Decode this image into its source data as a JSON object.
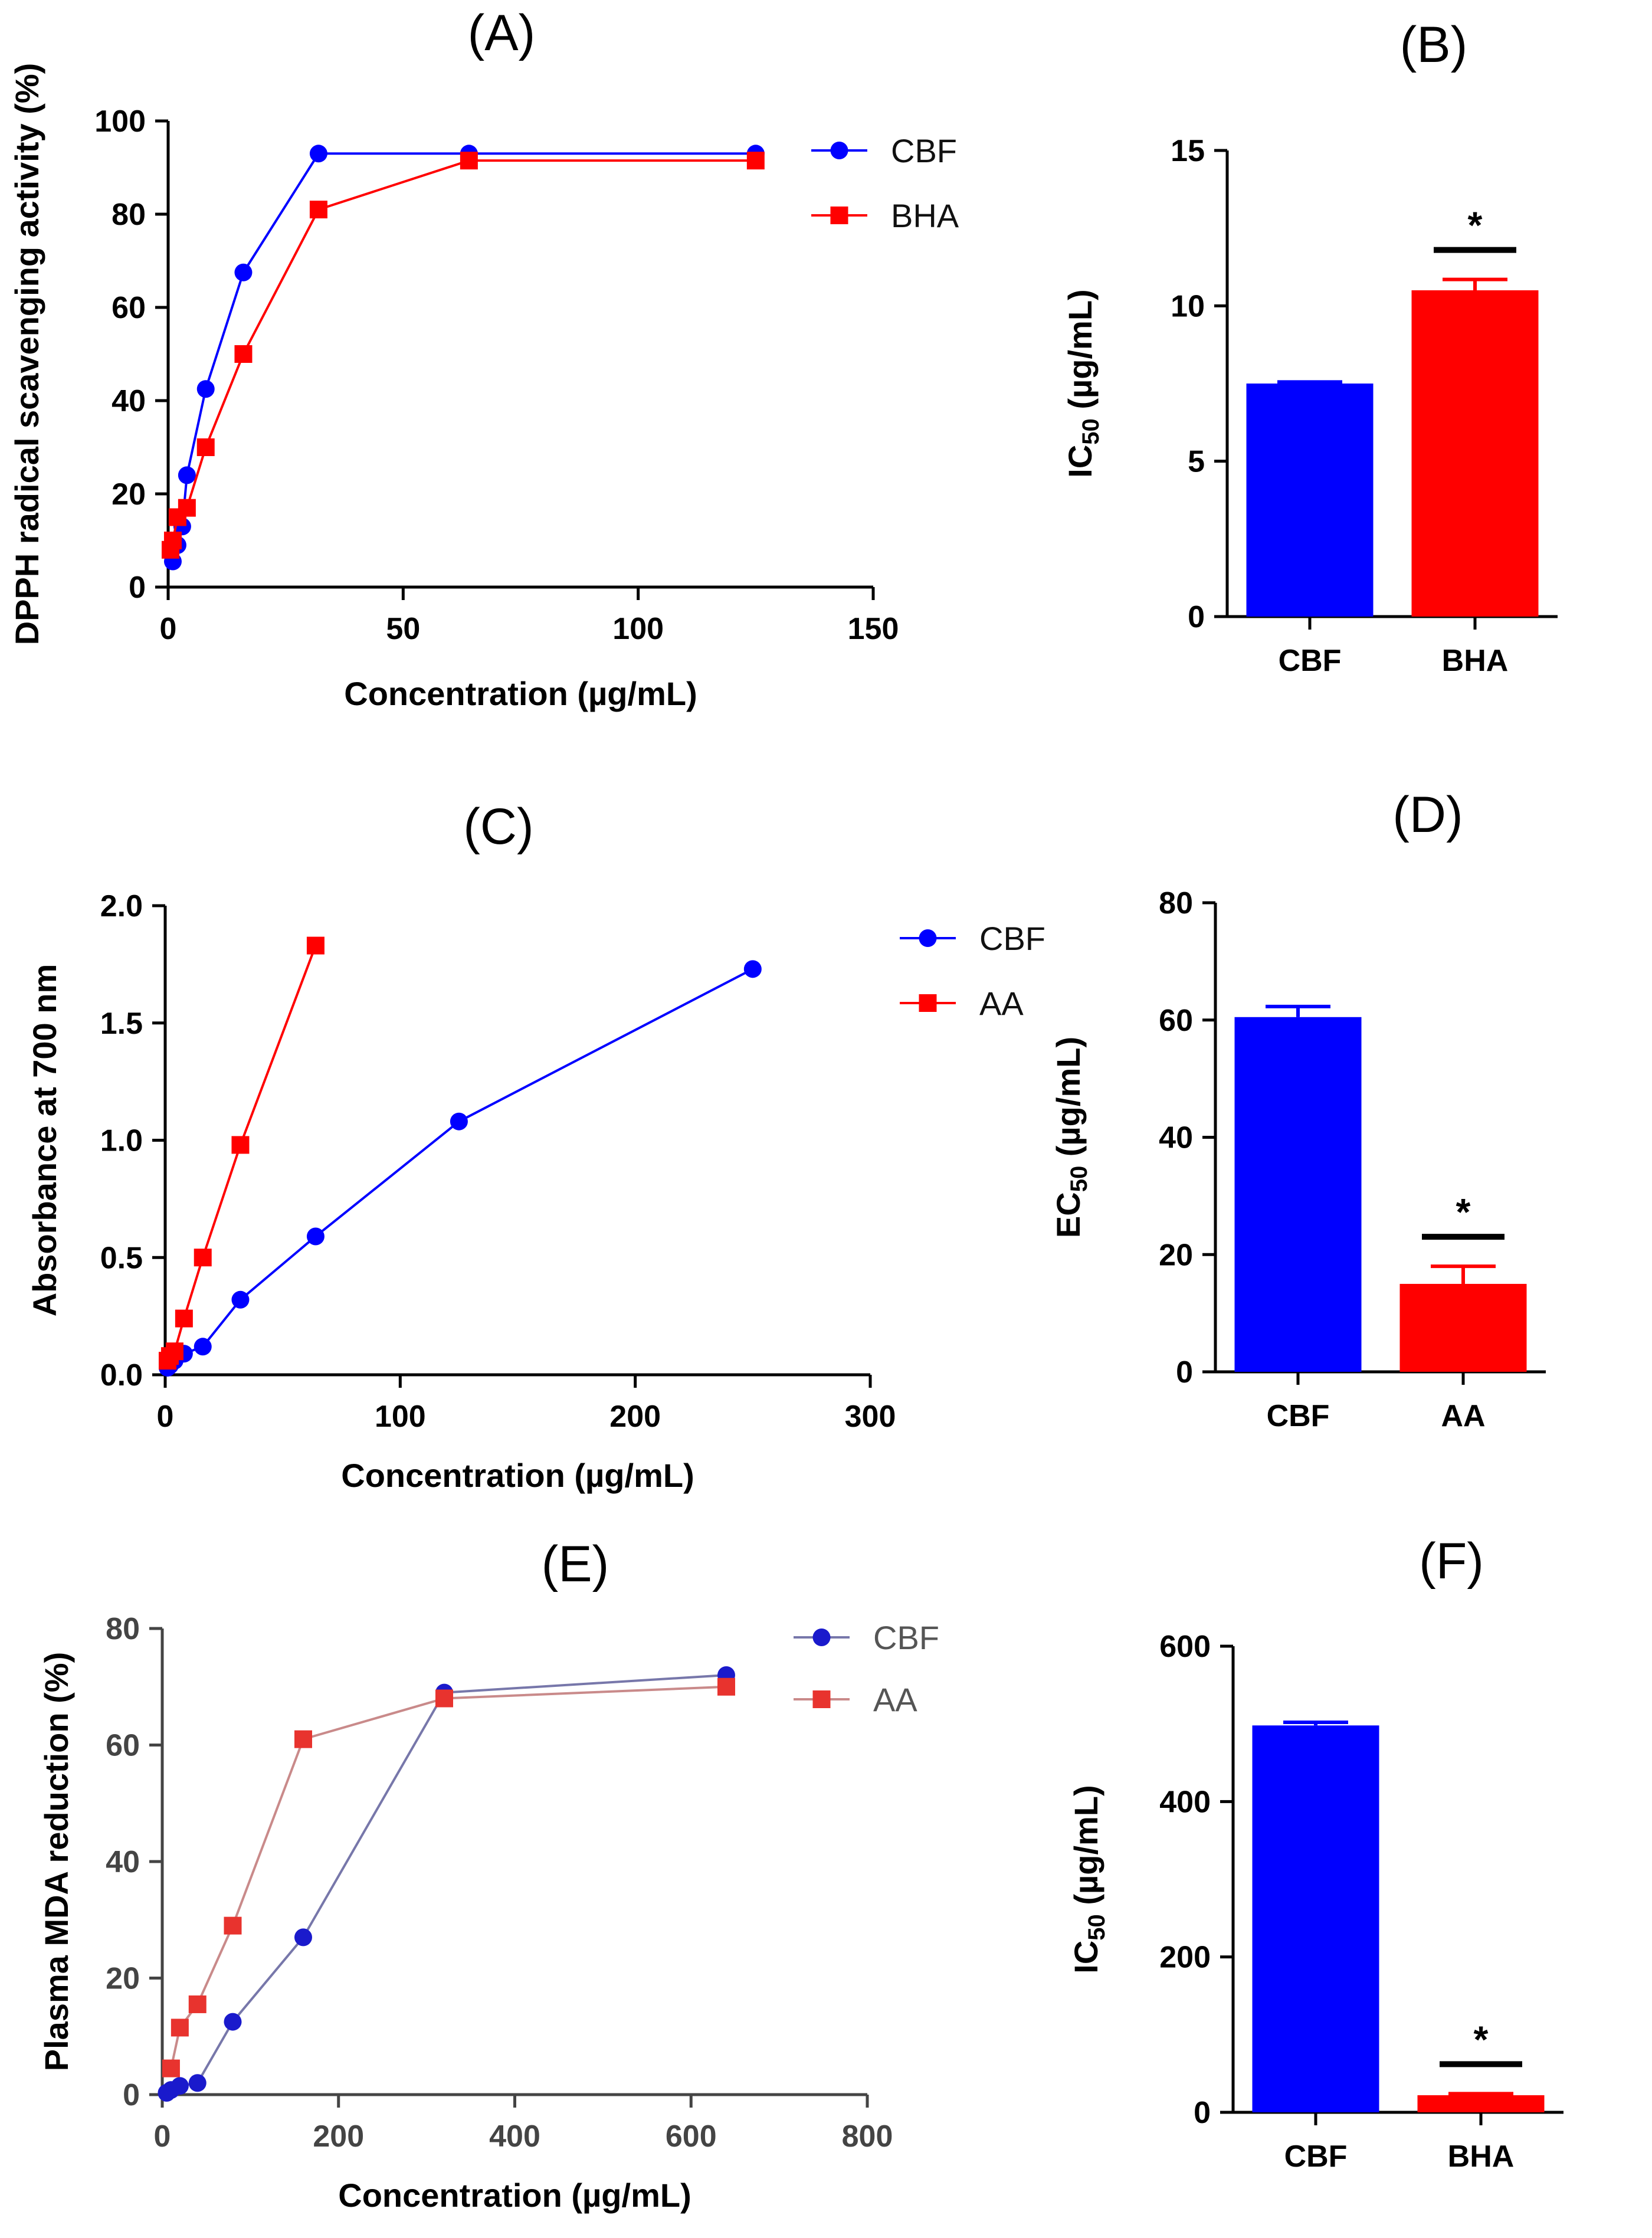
{
  "chart_data": [
    {
      "id": "A",
      "type": "line",
      "title": "(A)",
      "xlabel": "Concentration (µg/mL)",
      "ylabel": "DPPH radical scavenging activity (%)",
      "xlim": [
        0,
        150
      ],
      "ylim": [
        0,
        100
      ],
      "xticks": [
        0,
        50,
        100,
        150
      ],
      "yticks": [
        0,
        20,
        40,
        60,
        80,
        100
      ],
      "legend_position": "top-right-outside",
      "series": [
        {
          "name": "CBF",
          "color": "#0000FF",
          "marker": "circle",
          "x": [
            1,
            2,
            3,
            4,
            8,
            16,
            32,
            64,
            125
          ],
          "y": [
            5.5,
            9,
            13,
            24,
            42.5,
            67.5,
            93,
            93,
            93
          ]
        },
        {
          "name": "BHA",
          "color": "#FF0000",
          "marker": "square",
          "x": [
            0.5,
            1,
            2,
            4,
            8,
            16,
            32,
            64,
            125
          ],
          "y": [
            8,
            10,
            15,
            17,
            30,
            50,
            81,
            91.5,
            91.5
          ]
        }
      ]
    },
    {
      "id": "B",
      "type": "bar",
      "title": "(B)",
      "xlabel": "",
      "ylabel": "IC50 (µg/mL)",
      "ylabel_main": "IC",
      "ylabel_sub": "50",
      "ylabel_unit": "(µg/mL)",
      "ylim": [
        0,
        15
      ],
      "yticks": [
        0,
        5,
        10,
        15
      ],
      "categories": [
        "CBF",
        "BHA"
      ],
      "values": [
        7.5,
        10.5
      ],
      "errors": [
        0.05,
        0.35
      ],
      "colors": [
        "#0000FF",
        "#FF0000"
      ],
      "annotation": "*"
    },
    {
      "id": "C",
      "type": "line",
      "title": "(C)",
      "xlabel": "Concentration (µg/mL)",
      "ylabel": "Absorbance at 700 nm",
      "xlim": [
        0,
        300
      ],
      "ylim": [
        0,
        2.0
      ],
      "xticks": [
        0,
        100,
        200,
        300
      ],
      "yticks": [
        0.0,
        0.5,
        1.0,
        1.5,
        2.0
      ],
      "ytick_labels": [
        "0.0",
        "0.5",
        "1.0",
        "1.5",
        "2.0"
      ],
      "legend_position": "top-right-outside",
      "series": [
        {
          "name": "CBF",
          "color": "#0000FF",
          "marker": "circle",
          "x": [
            1,
            2,
            4,
            8,
            16,
            32,
            64,
            125,
            250
          ],
          "y": [
            0.03,
            0.04,
            0.06,
            0.09,
            0.12,
            0.32,
            0.59,
            1.08,
            1.73
          ]
        },
        {
          "name": "AA",
          "color": "#FF0000",
          "marker": "square",
          "x": [
            1,
            2,
            4,
            8,
            16,
            32,
            64
          ],
          "y": [
            0.06,
            0.08,
            0.1,
            0.24,
            0.5,
            0.98,
            1.83
          ]
        }
      ]
    },
    {
      "id": "D",
      "type": "bar",
      "title": "(D)",
      "xlabel": "",
      "ylabel": "EC50 (µg/mL)",
      "ylabel_main": "EC",
      "ylabel_sub": "50",
      "ylabel_unit": "(µg/mL)",
      "ylim": [
        0,
        80
      ],
      "yticks": [
        0,
        20,
        40,
        60,
        80
      ],
      "categories": [
        "CBF",
        "AA"
      ],
      "values": [
        60.5,
        15
      ],
      "errors": [
        1.8,
        3
      ],
      "colors": [
        "#0000FF",
        "#FF0000"
      ],
      "annotation": "*"
    },
    {
      "id": "E",
      "type": "line",
      "title": "(E)",
      "xlabel": "Concentration (µg/mL)",
      "ylabel": "Plasma MDA reduction (%)",
      "xlim": [
        0,
        800
      ],
      "ylim": [
        0,
        80
      ],
      "xticks": [
        0,
        200,
        400,
        600,
        800
      ],
      "yticks": [
        0,
        20,
        40,
        60,
        80
      ],
      "legend_position": "top-right-outside",
      "series": [
        {
          "name": "CBF",
          "color": "#1A1ACC",
          "line_color": "#7777AA",
          "marker": "circle",
          "x": [
            5,
            10,
            20,
            40,
            80,
            160,
            320,
            640
          ],
          "y": [
            0.3,
            0.8,
            1.5,
            2,
            12.5,
            27,
            69,
            72
          ]
        },
        {
          "name": "AA",
          "color": "#E8332E",
          "line_color": "#C98A8A",
          "marker": "square",
          "x": [
            10,
            20,
            40,
            80,
            160,
            320,
            640
          ],
          "y": [
            4.5,
            11.5,
            15.5,
            29,
            61,
            68,
            70
          ]
        }
      ]
    },
    {
      "id": "F",
      "type": "bar",
      "title": "(F)",
      "xlabel": "",
      "ylabel": "IC50 (µg/mL)",
      "ylabel_main": "IC",
      "ylabel_sub": "50",
      "ylabel_unit": "(µg/mL)",
      "ylim": [
        0,
        600
      ],
      "yticks": [
        0,
        200,
        400,
        600
      ],
      "categories": [
        "CBF",
        "BHA"
      ],
      "values": [
        498,
        22
      ],
      "errors": [
        4,
        2
      ],
      "colors": [
        "#0000FF",
        "#FF0000"
      ],
      "annotation": "*"
    }
  ]
}
